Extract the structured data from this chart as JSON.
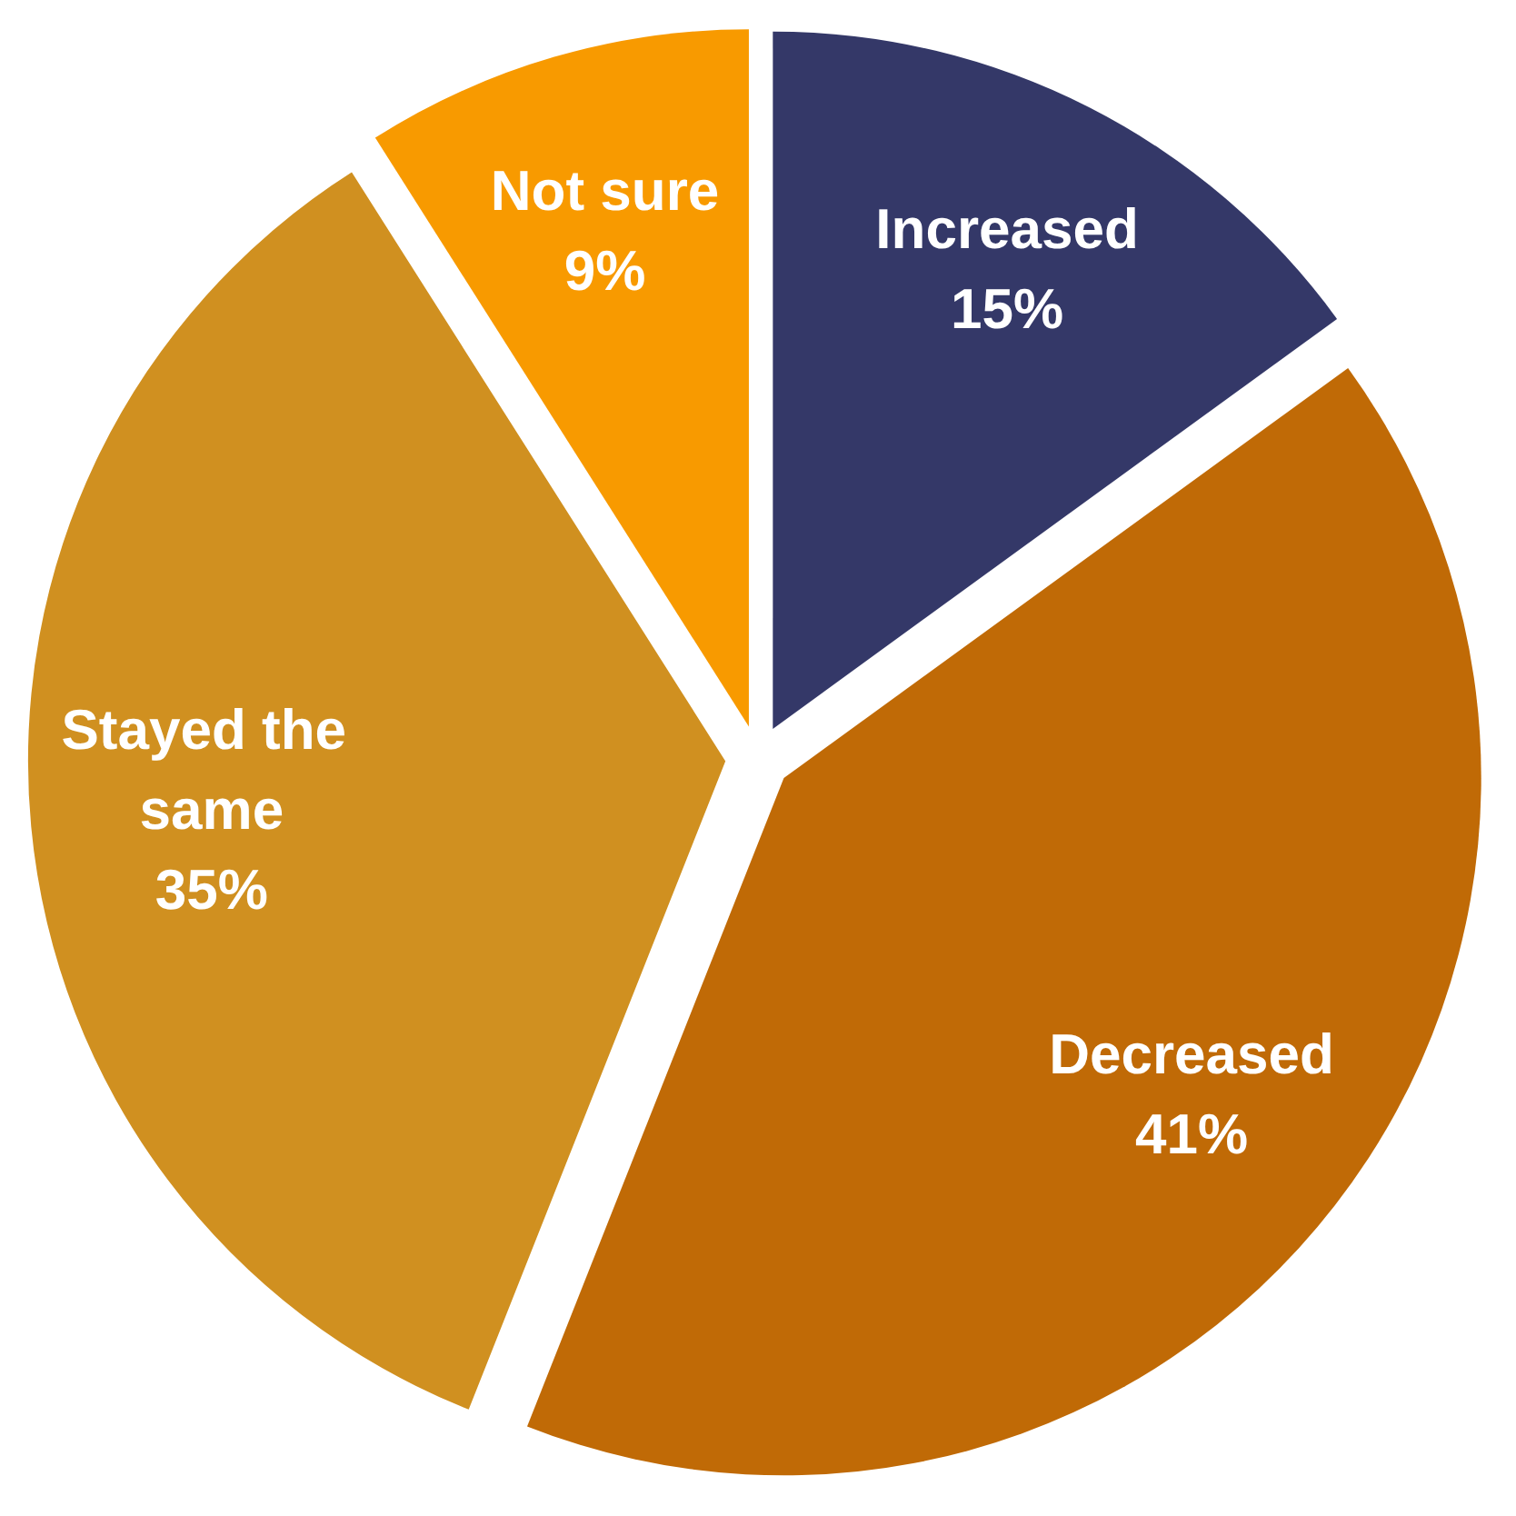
{
  "chart_data": {
    "type": "pie",
    "categories": [
      "Increased",
      "Decreased",
      "Stayed the same",
      "Not sure"
    ],
    "values": [
      15,
      41,
      35,
      9
    ],
    "value_labels": [
      "15%",
      "41%",
      "35%",
      "9%"
    ],
    "colors": [
      "#343868",
      "#c06a06",
      "#d09020",
      "#f89a00"
    ]
  }
}
